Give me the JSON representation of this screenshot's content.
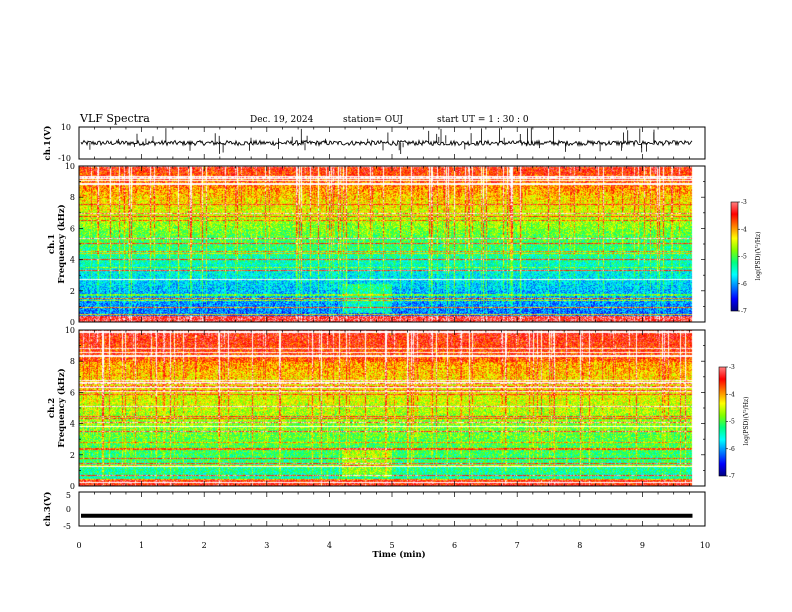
{
  "header": {
    "title": "VLF Spectra",
    "date": "Dec. 19, 2024",
    "station": "station= OUJ",
    "start": "start  UT =   1 : 30 : 0"
  },
  "colors": {
    "colormap": [
      "#000080",
      "#0000ff",
      "#0080ff",
      "#00ffff",
      "#00ff80",
      "#80ff00",
      "#ffff00",
      "#ff8000",
      "#ff0000",
      "#ff8080",
      "#ffffff"
    ]
  },
  "chart_data": [
    {
      "type": "line",
      "panel": "ch1-waveform",
      "ylabel": "ch.1(V)",
      "ylim": [
        -10,
        10
      ],
      "yticks": [
        "10",
        "-10"
      ],
      "trace_level": 0,
      "trace_spread": 1.5,
      "spikes_to": 10
    },
    {
      "type": "heatmap",
      "panel": "ch1-spectrogram",
      "ylabel_1": "ch.1",
      "ylabel_2": "Frequency (kHz)",
      "ylim": [
        0,
        10
      ],
      "yticks": [
        "0",
        "2",
        "4",
        "6",
        "8",
        "10"
      ],
      "colorbar_label": "log(PSD)(V²/Hz)",
      "colorbar_range": [
        -7,
        -3
      ],
      "colorbar_ticks": [
        "-3",
        "-4",
        "-5",
        "-6",
        "-7"
      ]
    },
    {
      "type": "heatmap",
      "panel": "ch2-spectrogram",
      "ylabel_1": "ch.2",
      "ylabel_2": "Frequency (kHz)",
      "ylim": [
        0,
        10
      ],
      "yticks": [
        "0",
        "2",
        "4",
        "6",
        "8",
        "10"
      ],
      "colorbar_label": "log(PSD)(V²/Hz)",
      "colorbar_range": [
        -7,
        -3
      ],
      "colorbar_ticks": [
        "-3",
        "-4",
        "-5",
        "-6",
        "-7"
      ]
    },
    {
      "type": "line",
      "panel": "ch3-waveform",
      "ylabel": "ch.3(V)",
      "ylim": [
        -5,
        5
      ],
      "yticks": [
        "5",
        "0",
        "-5"
      ],
      "trace_level": -2
    },
    {
      "type": "time-axis",
      "xlabel": "Time (min)",
      "xlim": [
        0,
        10
      ],
      "xticks": [
        "0",
        "1",
        "2",
        "3",
        "4",
        "5",
        "6",
        "7",
        "8",
        "9",
        "10"
      ],
      "data_end": 9.8
    }
  ]
}
